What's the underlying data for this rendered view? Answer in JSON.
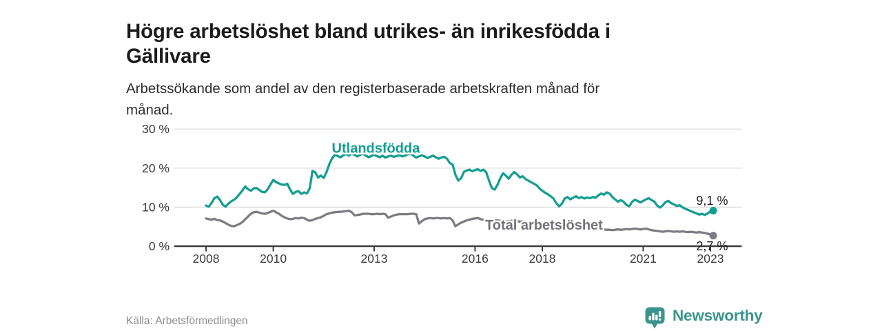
{
  "header": {
    "title_line1": "Högre arbetslöshet bland utrikes- än inrikesfödda i",
    "title_line2": "Gällivare",
    "subtitle_line1": "Arbetssökande som andel av den registerbaserade arbetskraften månad för",
    "subtitle_line2": "månad."
  },
  "footer": {
    "source": "Källa: Arbetsförmedlingen",
    "brand": "Newsworthy",
    "brand_color": "#3a948d"
  },
  "colors": {
    "axis_text": "#3c3c3c",
    "axis_line": "#3c3c3c",
    "gridline": "#d9d9d9",
    "end_label_text": "#1d1d1d",
    "teal_series": "#149e91",
    "gray_series": "#7c7c84"
  },
  "chart_data": {
    "type": "line",
    "title": "Högre arbetslöshet bland utrikes- än inrikesfödda i Gällivare",
    "subtitle": "Arbetssökande som andel av den registerbaserade arbetskraften månad för månad.",
    "x_unit": "year (monthly data)",
    "x_axis_range": [
      2007.1,
      2024.0
    ],
    "ylim": [
      0,
      30
    ],
    "yticks": [
      0,
      10,
      20,
      30
    ],
    "ytick_suffix": " %",
    "xticks": [
      2008,
      2010,
      2013,
      2016,
      2018,
      2021,
      2023
    ],
    "grid": "horizontal",
    "legend_position": "inline-labels",
    "series": [
      {
        "name": "Total arbetslöshet",
        "color": "#7c7c84",
        "label_color": "#73737b",
        "label": {
          "year": 2018.05,
          "value": 4.2
        },
        "end_label": {
          "text": "2,7 %",
          "year": 2023.05,
          "value": -1.1
        },
        "end_value": 2.7,
        "start_year": 2008,
        "points_per_year": 12,
        "values": [
          7.1,
          6.9,
          6.8,
          7.0,
          6.7,
          6.6,
          6.3,
          5.9,
          5.5,
          5.2,
          5.1,
          5.4,
          5.7,
          6.2,
          6.9,
          7.6,
          8.3,
          8.7,
          8.8,
          8.6,
          8.4,
          8.3,
          8.5,
          8.8,
          9.1,
          8.7,
          8.3,
          7.8,
          7.4,
          7.1,
          6.9,
          7.0,
          7.2,
          7.1,
          7.3,
          7.2,
          6.8,
          6.5,
          6.7,
          7.0,
          7.2,
          7.4,
          7.8,
          8.2,
          8.4,
          8.6,
          8.7,
          8.8,
          8.8,
          8.9,
          9.0,
          9.1,
          8.7,
          7.9,
          8.0,
          8.1,
          8.3,
          8.3,
          8.3,
          8.2,
          8.2,
          8.3,
          8.2,
          8.3,
          8.2,
          7.3,
          7.6,
          7.9,
          8.1,
          8.2,
          8.2,
          8.2,
          8.2,
          8.3,
          8.3,
          8.2,
          5.8,
          6.4,
          6.9,
          7.1,
          7.2,
          7.1,
          7.2,
          7.2,
          7.1,
          7.2,
          7.1,
          7.2,
          6.6,
          5.1,
          5.6,
          6.0,
          6.3,
          6.6,
          6.8,
          7.0,
          7.1,
          7.2,
          6.9,
          6.8,
          6.7,
          6.6,
          6.6,
          6.7,
          6.6,
          6.5,
          6.4,
          6.4,
          6.4,
          6.5,
          6.5,
          6.4,
          6.3,
          6.3,
          6.2,
          6.1,
          6.0,
          5.9,
          5.8,
          5.8,
          5.7,
          5.6,
          5.5,
          5.4,
          5.2,
          5.1,
          5.0,
          5.0,
          4.9,
          4.9,
          4.8,
          4.8,
          4.8,
          4.7,
          4.6,
          4.6,
          4.5,
          4.5,
          4.4,
          4.4,
          4.3,
          4.3,
          4.3,
          4.2,
          4.2,
          4.1,
          4.2,
          4.3,
          4.2,
          4.3,
          4.4,
          4.3,
          4.4,
          4.5,
          4.4,
          4.3,
          4.4,
          4.5,
          4.3,
          4.1,
          4.0,
          3.9,
          3.8,
          3.7,
          3.8,
          3.9,
          3.8,
          3.7,
          3.8,
          3.7,
          3.8,
          3.7,
          3.6,
          3.7,
          3.6,
          3.5,
          3.6,
          3.5,
          3.4,
          3.2,
          3.0,
          2.7
        ]
      },
      {
        "name": "Utlandsfödda",
        "color": "#149e91",
        "label_color": "#149e91",
        "label": {
          "year": 2013.05,
          "value": 23.9
        },
        "end_label": {
          "text": "9,1 %",
          "year": 2023.05,
          "value": 10.6
        },
        "end_value": 9.1,
        "start_year": 2008,
        "points_per_year": 12,
        "values": [
          10.4,
          10.1,
          11.1,
          12.3,
          12.7,
          11.8,
          10.6,
          10.1,
          10.9,
          11.5,
          11.9,
          12.5,
          13.4,
          14.3,
          15.3,
          14.6,
          14.2,
          14.8,
          14.9,
          14.4,
          13.9,
          13.8,
          14.6,
          15.8,
          17.0,
          16.4,
          16.1,
          15.8,
          15.7,
          16.0,
          14.5,
          13.4,
          13.9,
          14.1,
          13.4,
          13.8,
          13.5,
          14.8,
          19.3,
          18.9,
          17.6,
          18.1,
          17.5,
          19.0,
          21.0,
          22.5,
          23.4,
          23.1,
          22.8,
          23.3,
          23.6,
          23.2,
          23.8,
          23.4,
          23.0,
          23.4,
          23.7,
          23.2,
          22.8,
          23.1,
          23.4,
          23.1,
          22.8,
          23.2,
          22.7,
          23.0,
          23.2,
          22.9,
          23.1,
          23.3,
          23.0,
          23.2,
          23.5,
          23.7,
          23.2,
          22.7,
          23.0,
          23.3,
          23.0,
          22.6,
          22.9,
          23.2,
          22.8,
          22.4,
          22.7,
          22.9,
          22.4,
          21.3,
          20.9,
          18.3,
          16.8,
          17.4,
          19.0,
          19.4,
          19.6,
          19.2,
          19.5,
          19.7,
          19.3,
          19.6,
          18.9,
          16.8,
          14.9,
          14.5,
          15.7,
          17.4,
          18.7,
          18.1,
          17.3,
          18.3,
          19.0,
          18.4,
          17.6,
          17.9,
          17.2,
          16.8,
          16.4,
          16.0,
          15.6,
          14.8,
          14.2,
          13.7,
          13.3,
          12.8,
          12.2,
          11.0,
          10.2,
          10.9,
          12.2,
          12.6,
          12.0,
          12.4,
          12.8,
          12.3,
          12.6,
          12.2,
          12.5,
          12.3,
          12.6,
          12.4,
          13.0,
          13.5,
          13.2,
          13.8,
          13.5,
          12.6,
          12.0,
          11.4,
          11.8,
          11.4,
          10.6,
          10.2,
          11.3,
          11.9,
          11.6,
          11.2,
          11.6,
          12.0,
          12.3,
          11.8,
          11.4,
          10.4,
          9.9,
          10.5,
          11.3,
          11.6,
          11.0,
          10.7,
          10.3,
          10.5,
          10.0,
          9.6,
          9.3,
          9.0,
          8.7,
          8.4,
          8.1,
          8.3,
          8.0,
          8.4,
          8.9,
          9.1
        ]
      }
    ]
  }
}
